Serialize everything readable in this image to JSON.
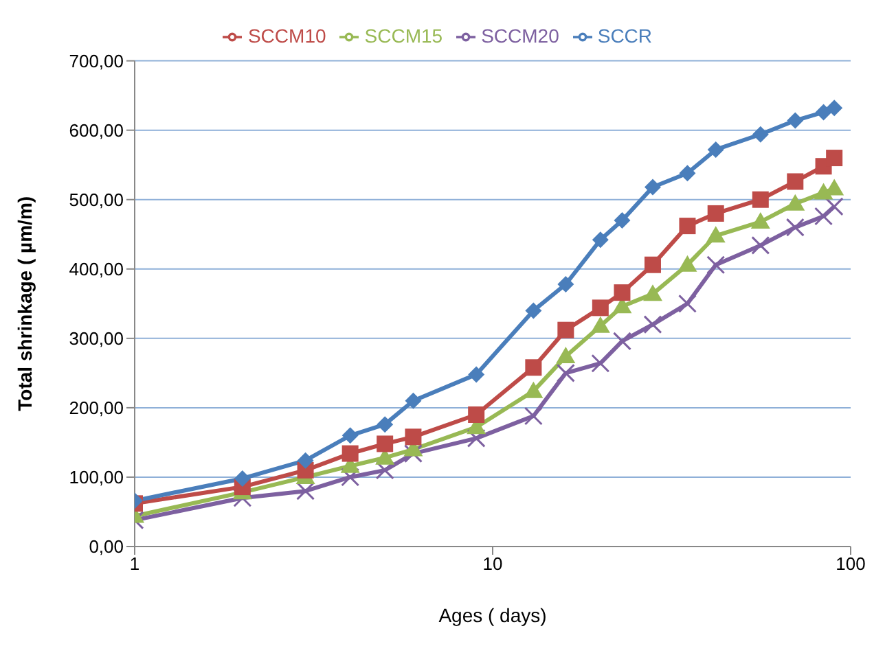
{
  "chart_data": {
    "type": "line",
    "xlabel": "Ages ( days)",
    "ylabel": "Total shrinkage ( µm/m)",
    "log": "x",
    "grid": "y",
    "legend": "top",
    "x": [
      1,
      2,
      3,
      4,
      5,
      6,
      9,
      13,
      16,
      20,
      23,
      28,
      35,
      42,
      56,
      70,
      84,
      90
    ],
    "xlim": [
      1,
      100
    ],
    "xticks": [
      1,
      10,
      100
    ],
    "ylim": [
      0,
      700
    ],
    "yticks": [
      {
        "value": 0,
        "label": "0,00"
      },
      {
        "value": 100,
        "label": "100,00"
      },
      {
        "value": 200,
        "label": "200,00"
      },
      {
        "value": 300,
        "label": "300,00"
      },
      {
        "value": 400,
        "label": "400,00"
      },
      {
        "value": 500,
        "label": "500,00"
      },
      {
        "value": 600,
        "label": "600,00"
      },
      {
        "value": 700,
        "label": "700,00"
      }
    ],
    "series": [
      {
        "name": "SCCR",
        "color": "#4a7ebb",
        "marker": "diamond",
        "values": [
          66,
          98,
          124,
          160,
          176,
          210,
          248,
          340,
          378,
          442,
          470,
          518,
          538,
          572,
          594,
          614,
          626,
          632
        ]
      },
      {
        "name": "SCCM10",
        "color": "#be4b48",
        "marker": "square",
        "values": [
          62,
          86,
          110,
          134,
          148,
          158,
          190,
          258,
          312,
          344,
          366,
          406,
          462,
          480,
          500,
          526,
          548,
          560
        ]
      },
      {
        "name": "SCCM15",
        "color": "#98b954",
        "marker": "triangle",
        "values": [
          44,
          78,
          100,
          116,
          128,
          140,
          172,
          224,
          274,
          318,
          346,
          364,
          406,
          448,
          468,
          494,
          510,
          516
        ]
      },
      {
        "name": "SCCM20",
        "color": "#7d60a0",
        "marker": "cross",
        "values": [
          38,
          70,
          80,
          100,
          110,
          134,
          156,
          188,
          250,
          264,
          296,
          320,
          350,
          406,
          434,
          460,
          476,
          490
        ]
      }
    ]
  }
}
